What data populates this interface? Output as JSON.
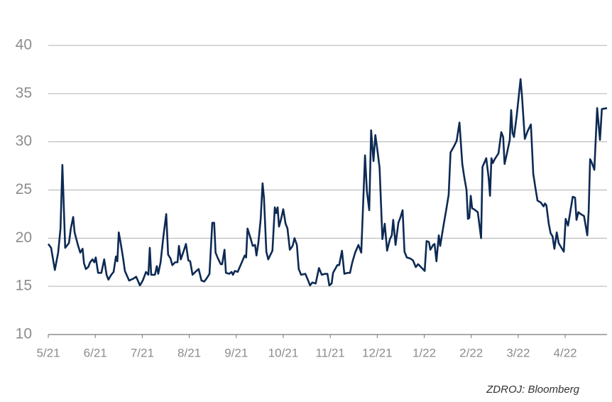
{
  "chart_data": {
    "type": "line",
    "source": "ZDROJ: Bloomberg",
    "color": "#0d2a54",
    "grid": true,
    "x": [
      0,
      0.06,
      0.14,
      0.21,
      0.26,
      0.3,
      0.36,
      0.44,
      0.48,
      0.53,
      0.56,
      0.63,
      0.68,
      0.73,
      0.76,
      0.8,
      0.85,
      0.89,
      0.94,
      0.98,
      1.01,
      1.06,
      1.13,
      1.19,
      1.24,
      1.28,
      1.34,
      1.39,
      1.44,
      1.47,
      1.5,
      1.54,
      1.59,
      1.63,
      1.72,
      1.81,
      1.87,
      1.95,
      2.01,
      2.08,
      2.13,
      2.16,
      2.19,
      2.27,
      2.31,
      2.34,
      2.39,
      2.45,
      2.51,
      2.55,
      2.6,
      2.64,
      2.7,
      2.75,
      2.78,
      2.82,
      2.87,
      2.93,
      2.98,
      3.02,
      3.07,
      3.13,
      3.2,
      3.26,
      3.32,
      3.38,
      3.43,
      3.49,
      3.53,
      3.56,
      3.61,
      3.67,
      3.7,
      3.75,
      3.78,
      3.85,
      3.9,
      3.93,
      3.97,
      4.03,
      4.11,
      4.18,
      4.21,
      4.24,
      4.31,
      4.35,
      4.4,
      4.43,
      4.47,
      4.52,
      4.56,
      4.59,
      4.64,
      4.68,
      4.77,
      4.82,
      4.85,
      4.88,
      4.91,
      4.95,
      5.0,
      5.05,
      5.09,
      5.14,
      5.2,
      5.24,
      5.29,
      5.33,
      5.38,
      5.47,
      5.53,
      5.57,
      5.62,
      5.69,
      5.76,
      5.82,
      5.89,
      5.94,
      5.98,
      6.03,
      6.06,
      6.15,
      6.19,
      6.25,
      6.3,
      6.37,
      6.42,
      6.47,
      6.53,
      6.6,
      6.66,
      6.74,
      6.78,
      6.83,
      6.87,
      6.92,
      6.96,
      7.01,
      7.05,
      7.11,
      7.16,
      7.21,
      7.27,
      7.31,
      7.34,
      7.39,
      7.45,
      7.49,
      7.54,
      7.58,
      7.63,
      7.7,
      7.76,
      7.82,
      7.87,
      7.95,
      8.01,
      8.05,
      8.1,
      8.13,
      8.19,
      8.22,
      8.26,
      8.31,
      8.34,
      8.41,
      8.47,
      8.52,
      8.56,
      8.64,
      8.69,
      8.75,
      8.81,
      8.85,
      8.9,
      8.93,
      8.96,
      8.99,
      9.02,
      9.06,
      9.14,
      9.21,
      9.24,
      9.32,
      9.37,
      9.4,
      9.43,
      9.46,
      9.5,
      9.58,
      9.64,
      9.68,
      9.71,
      9.76,
      9.82,
      9.85,
      9.88,
      9.91,
      9.97,
      10.05,
      10.08,
      10.14,
      10.2,
      10.27,
      10.32,
      10.36,
      10.41,
      10.48,
      10.54,
      10.57,
      10.6,
      10.65,
      10.69,
      10.73,
      10.77,
      10.82,
      10.86,
      10.92,
      10.97,
      11.01,
      11.06,
      11.1,
      11.16,
      11.21,
      11.24,
      11.28,
      11.33,
      11.4,
      11.47,
      11.5,
      11.53,
      11.57,
      11.62,
      11.68,
      11.74,
      11.78,
      11.89
    ],
    "values": [
      19.4,
      19,
      16.7,
      18.5,
      21,
      27.6,
      19,
      19.5,
      21,
      22.2,
      20.6,
      19.3,
      18.5,
      18.9,
      17.4,
      16.8,
      17,
      17.5,
      17.8,
      17.5,
      18,
      16.4,
      16.4,
      17.8,
      16.2,
      15.7,
      16.2,
      16.5,
      18.1,
      17.6,
      20.6,
      19.5,
      18,
      16.6,
      15.6,
      15.8,
      16,
      15.1,
      15.6,
      16.5,
      16.2,
      19,
      16.2,
      16.2,
      17.1,
      16.3,
      17.5,
      20.2,
      22.5,
      18.3,
      17.9,
      17.2,
      17.5,
      17.5,
      19.2,
      17.8,
      18.5,
      19.4,
      17.7,
      17.6,
      16.2,
      16.5,
      16.8,
      15.6,
      15.5,
      15.9,
      16.3,
      21.6,
      21.6,
      18.5,
      17.9,
      17.3,
      17.3,
      18.8,
      16.4,
      16.3,
      16.5,
      16.2,
      16.6,
      16.5,
      17.4,
      18.2,
      18,
      21,
      19.9,
      19.2,
      19.3,
      18.2,
      19.5,
      22,
      25.7,
      24.2,
      18.6,
      17.8,
      18.7,
      23.2,
      22.6,
      23.2,
      21.2,
      21.9,
      23,
      21.5,
      21,
      18.8,
      19.2,
      20,
      19.3,
      16.8,
      16.2,
      16.3,
      15.6,
      15.1,
      15.4,
      15.3,
      16.9,
      16.2,
      16.3,
      16.3,
      15.1,
      15.3,
      16.4,
      17.2,
      17.2,
      18.7,
      16.3,
      16.4,
      16.4,
      17.5,
      18.5,
      19.3,
      18.5,
      28.6,
      24.9,
      22.9,
      31.2,
      28,
      30.7,
      28.9,
      27.3,
      19.9,
      21.5,
      18.7,
      19.9,
      20.3,
      21.9,
      19.3,
      21.6,
      22.1,
      22.9,
      18.6,
      18,
      17.9,
      17.7,
      17,
      17.3,
      16.9,
      16.6,
      19.7,
      19.6,
      18.8,
      19.3,
      19.4,
      17.6,
      20.3,
      19.2,
      21.3,
      23,
      24.5,
      28.9,
      29.6,
      30.1,
      32,
      27.7,
      26.4,
      25,
      22,
      22.1,
      24.4,
      23.1,
      23,
      22.7,
      20,
      27.4,
      28.3,
      26.3,
      24.4,
      28.3,
      27.8,
      28.2,
      28.8,
      31,
      30.5,
      27.7,
      28.8,
      30.2,
      33.3,
      30.9,
      30.5,
      32.8,
      36.5,
      34.8,
      30.3,
      31.1,
      31.8,
      26.7,
      25.4,
      23.9,
      23.7,
      23.3,
      23.6,
      23.4,
      21.5,
      20.5,
      20.2,
      18.9,
      20.6,
      19.5,
      19,
      18.6,
      22,
      21.3,
      22.5,
      24.3,
      24.2,
      21.9,
      22.7,
      22.5,
      22.3,
      20.3,
      22.9,
      28.2,
      27.8,
      27.1,
      33.5,
      30.2,
      33.4,
      33.5
    ],
    "xlim": [
      0,
      11.89
    ],
    "xticks": [
      {
        "value": 0,
        "label": "5/21"
      },
      {
        "value": 1,
        "label": "6/21"
      },
      {
        "value": 2,
        "label": "7/21"
      },
      {
        "value": 3,
        "label": "8/21"
      },
      {
        "value": 4,
        "label": "9/21"
      },
      {
        "value": 5,
        "label": "10/21"
      },
      {
        "value": 6,
        "label": "11/21"
      },
      {
        "value": 7,
        "label": "12/21"
      },
      {
        "value": 8,
        "label": "1/22"
      },
      {
        "value": 9,
        "label": "2/22"
      },
      {
        "value": 10,
        "label": "3/22"
      },
      {
        "value": 11,
        "label": "4/22"
      }
    ],
    "ylim": [
      10,
      40
    ],
    "yticks": [
      10,
      15,
      20,
      25,
      30,
      35,
      40
    ]
  }
}
